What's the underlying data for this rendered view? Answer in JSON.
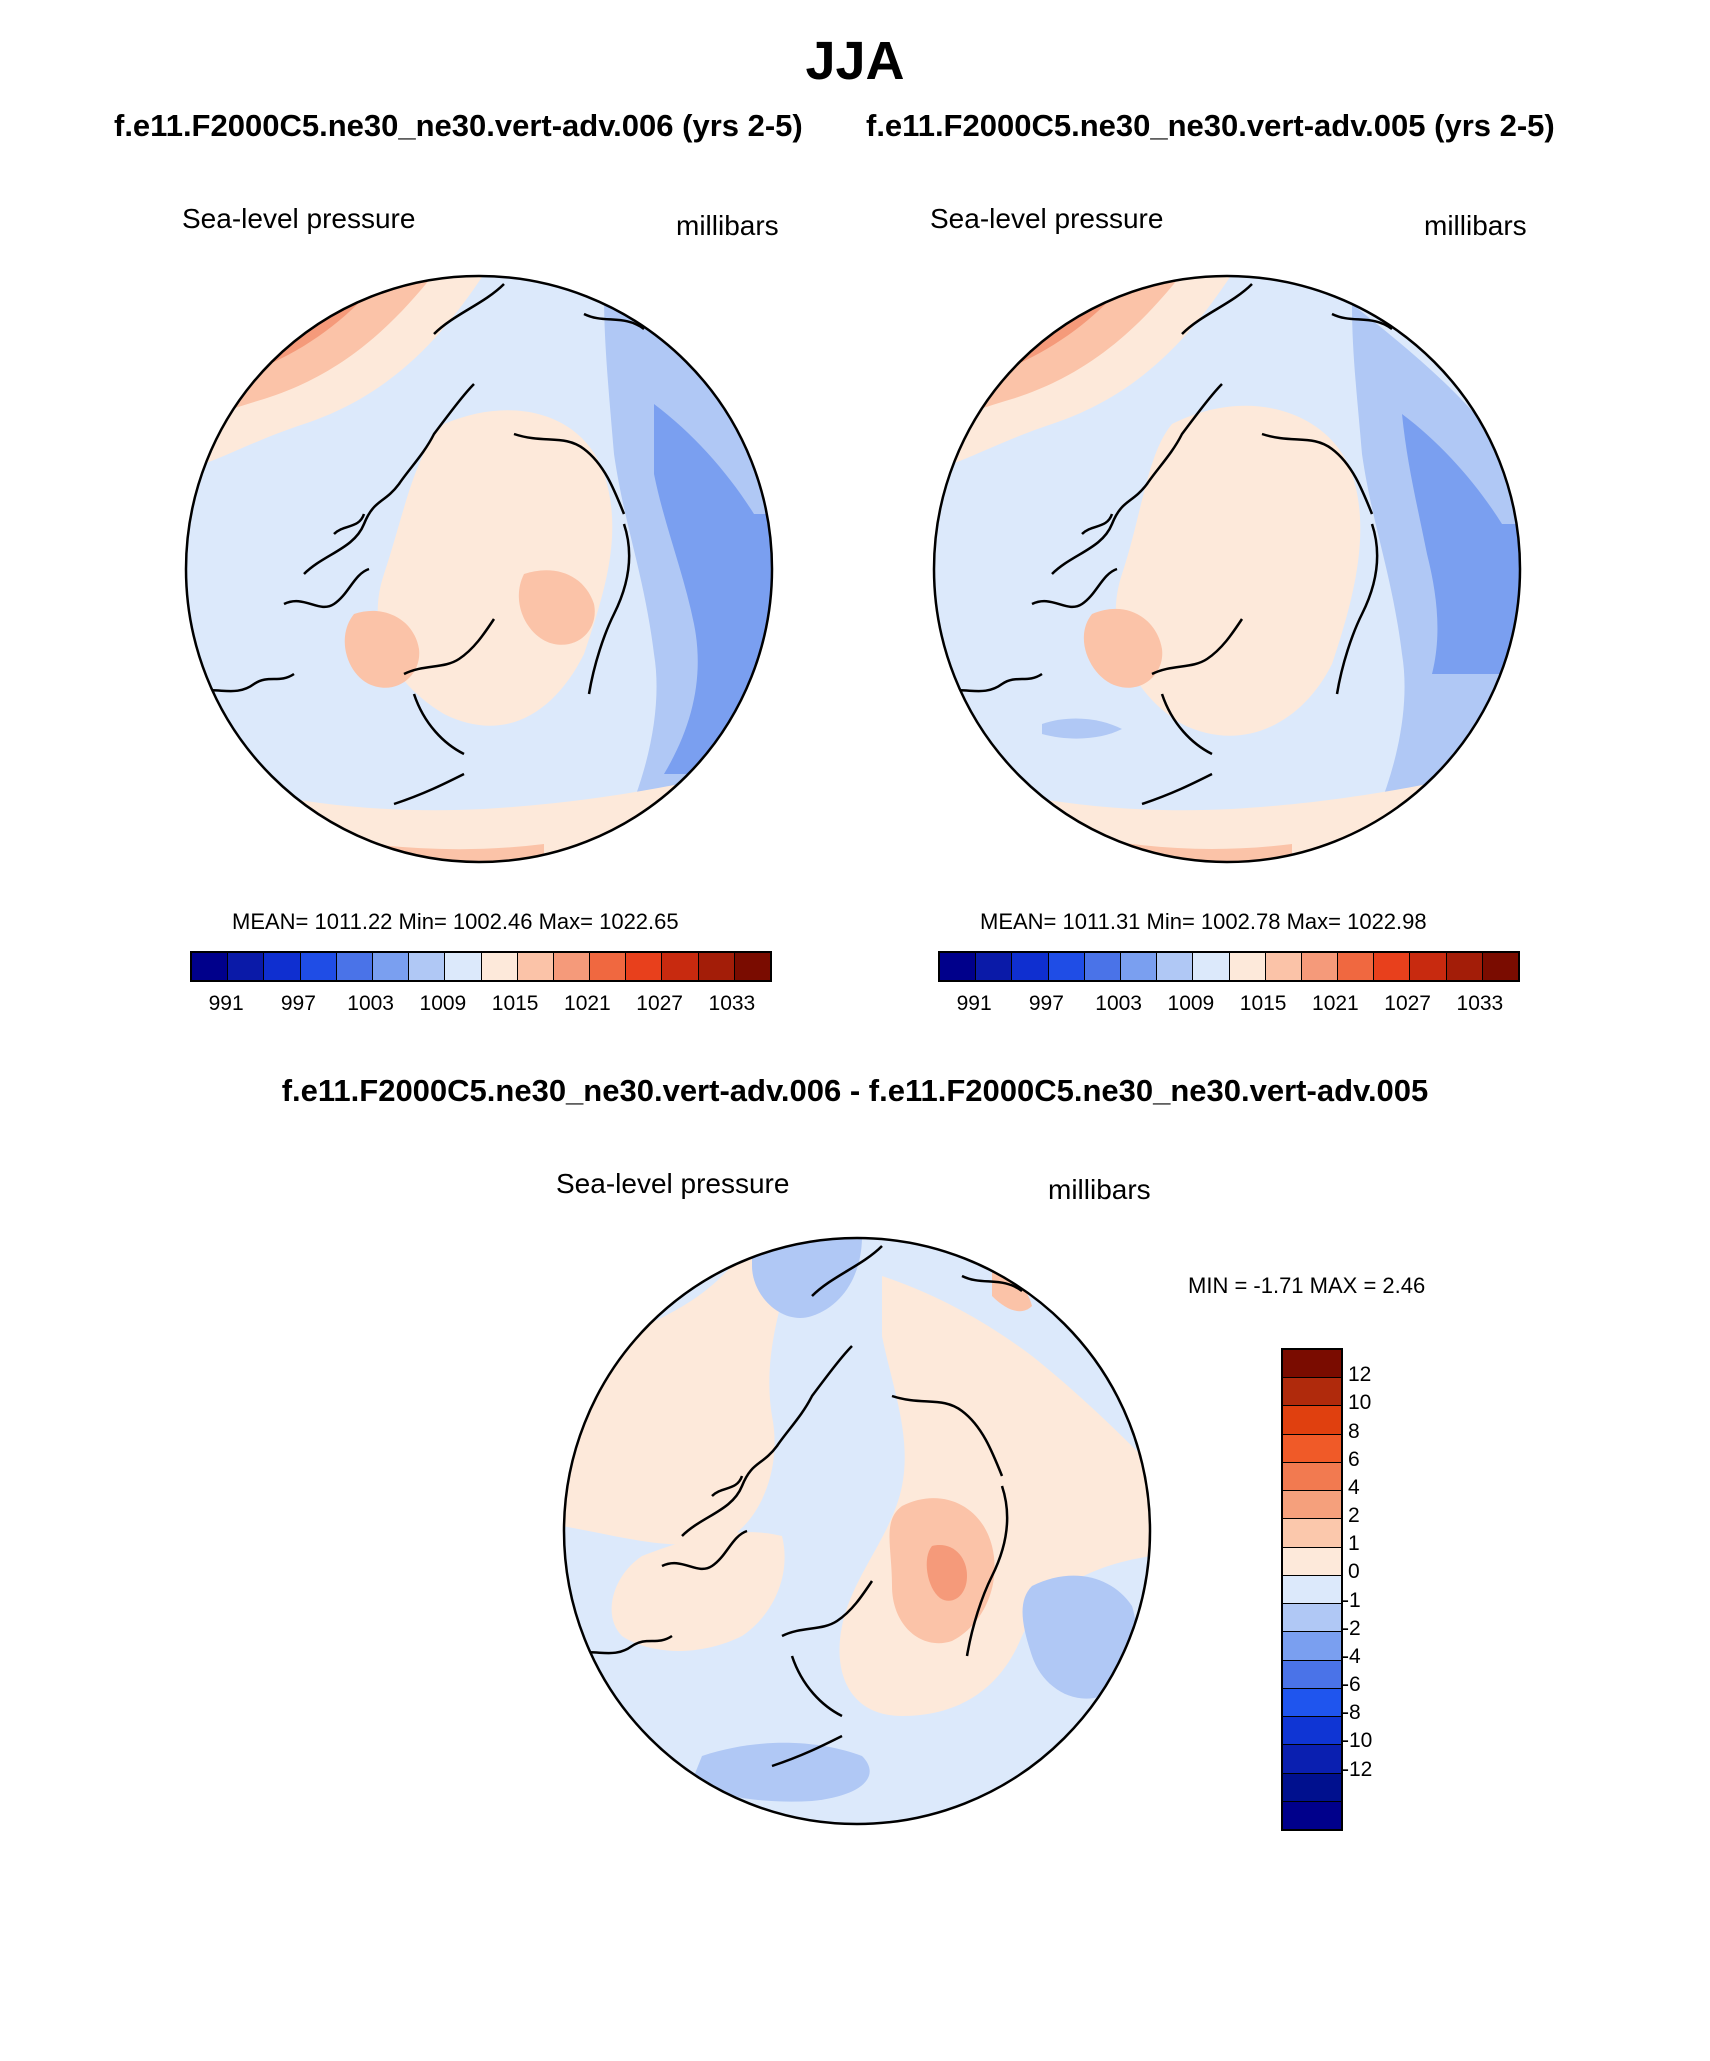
{
  "figure": {
    "season": "JJA",
    "case1_title": "f.e11.F2000C5.ne30_ne30.vert-adv.006 (yrs 2-5)",
    "case2_title": "f.e11.F2000C5.ne30_ne30.vert-adv.005 (yrs 2-5)",
    "diff_title": "f.e11.F2000C5.ne30_ne30.vert-adv.006 - f.e11.F2000C5.ne30_ne30.vert-adv.005"
  },
  "panels": {
    "left": {
      "variable": "Sea-level pressure",
      "units": "millibars",
      "stats": "MEAN= 1011.22  Min= 1002.46  Max= 1022.65"
    },
    "right": {
      "variable": "Sea-level pressure",
      "units": "millibars",
      "stats": "MEAN= 1011.31  Min= 1002.78  Max= 1022.98"
    },
    "diff": {
      "variable": "Sea-level pressure",
      "units": "millibars",
      "stats": "MIN =  -1.71 MAX =   2.46"
    }
  },
  "colorbars": {
    "main": {
      "colors": [
        "#00008b",
        "#0a1aa8",
        "#0f2fd0",
        "#1f4de6",
        "#4a73e8",
        "#7a9ff0",
        "#b0c8f5",
        "#dce9fb",
        "#fde9da",
        "#fbc3a8",
        "#f59a7a",
        "#f06840",
        "#e8401c",
        "#c82a0f",
        "#a31d08",
        "#7a0c00"
      ],
      "tick_labels": [
        "991",
        "997",
        "1003",
        "1009",
        "1015",
        "1021",
        "1027",
        "1033"
      ]
    },
    "diff": {
      "colors": [
        "#7a0c00",
        "#b02a0c",
        "#e0400f",
        "#f05a28",
        "#f27a50",
        "#f5a07c",
        "#fbc8ac",
        "#fde9da",
        "#dce9fb",
        "#b0c8f5",
        "#7a9ff0",
        "#4a73e8",
        "#1f55ee",
        "#0f35d4",
        "#0a1fb0",
        "#00108e",
        "#00008b"
      ],
      "tick_labels": [
        "12",
        "10",
        "8",
        "6",
        "4",
        "2",
        "1",
        "0",
        "-1",
        "-2",
        "-4",
        "-6",
        "-8",
        "-10",
        "-12"
      ]
    }
  },
  "field_colors": {
    "ocean": "#dce9fb",
    "light_pos": "#fde9da",
    "mid_pos": "#fbc3a8",
    "strong_pos": "#f59a7a",
    "stronger_pos": "#f06840",
    "light_neg": "#b0c8f5",
    "mid_neg": "#7a9ff0",
    "strong_neg": "#4a73e8"
  }
}
